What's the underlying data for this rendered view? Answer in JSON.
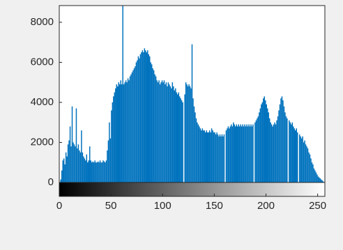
{
  "chart_data": {
    "type": "bar",
    "color": "#0072bd",
    "xlim": [
      0,
      257
    ],
    "ylim": [
      0,
      8835
    ],
    "xticks": [
      0,
      50,
      100,
      150,
      200,
      250
    ],
    "yticks": [
      0,
      2000,
      4000,
      6000,
      8000
    ],
    "x": [
      0,
      1,
      2,
      3,
      4,
      5,
      6,
      7,
      8,
      9,
      10,
      11,
      12,
      13,
      14,
      15,
      16,
      17,
      18,
      19,
      20,
      21,
      22,
      23,
      24,
      25,
      26,
      27,
      28,
      29,
      30,
      31,
      32,
      33,
      34,
      35,
      36,
      37,
      38,
      39,
      40,
      41,
      42,
      43,
      44,
      45,
      46,
      47,
      48,
      49,
      50,
      51,
      52,
      53,
      54,
      55,
      56,
      57,
      58,
      59,
      60,
      61,
      62,
      63,
      64,
      65,
      66,
      67,
      68,
      69,
      70,
      71,
      72,
      73,
      74,
      75,
      76,
      77,
      78,
      79,
      80,
      81,
      82,
      83,
      84,
      85,
      86,
      87,
      88,
      89,
      90,
      91,
      92,
      93,
      94,
      95,
      96,
      97,
      98,
      99,
      100,
      101,
      102,
      103,
      104,
      105,
      106,
      107,
      108,
      109,
      110,
      111,
      112,
      113,
      114,
      115,
      116,
      117,
      118,
      119,
      120,
      121,
      122,
      123,
      124,
      125,
      126,
      127,
      128,
      129,
      130,
      131,
      132,
      133,
      134,
      135,
      136,
      137,
      138,
      139,
      140,
      141,
      142,
      143,
      144,
      145,
      146,
      147,
      148,
      149,
      150,
      151,
      152,
      153,
      154,
      155,
      156,
      157,
      158,
      159,
      160,
      161,
      162,
      163,
      164,
      165,
      166,
      167,
      168,
      169,
      170,
      171,
      172,
      173,
      174,
      175,
      176,
      177,
      178,
      179,
      180,
      181,
      182,
      183,
      184,
      185,
      186,
      187,
      188,
      189,
      190,
      191,
      192,
      193,
      194,
      195,
      196,
      197,
      198,
      199,
      200,
      201,
      202,
      203,
      204,
      205,
      206,
      207,
      208,
      209,
      210,
      211,
      212,
      213,
      214,
      215,
      216,
      217,
      218,
      219,
      220,
      221,
      222,
      223,
      224,
      225,
      226,
      227,
      228,
      229,
      230,
      231,
      232,
      233,
      234,
      235,
      236,
      237,
      238,
      239,
      240,
      241,
      242,
      243,
      244,
      245,
      246,
      247,
      248,
      249,
      250,
      251,
      252,
      253,
      254,
      255
    ],
    "values": [
      0,
      150,
      600,
      1100,
      1200,
      900,
      1500,
      1300,
      1900,
      2100,
      2800,
      1800,
      3800,
      2000,
      1900,
      1800,
      3700,
      1700,
      1900,
      1600,
      1500,
      2600,
      1500,
      1300,
      1200,
      1100,
      1400,
      1000,
      1100,
      1800,
      1100,
      1000,
      1050,
      1000,
      1100,
      1000,
      1000,
      1050,
      1000,
      1100,
      1000,
      1000,
      1100,
      1050,
      1000,
      1100,
      1600,
      2100,
      3000,
      2200,
      3600,
      4000,
      4300,
      4500,
      4700,
      4900,
      4800,
      5000,
      4900,
      5100,
      4900,
      8835,
      4900,
      5000,
      5100,
      5000,
      5200,
      5100,
      5300,
      5400,
      5500,
      5600,
      5700,
      5800,
      6000,
      6100,
      6300,
      6200,
      6400,
      6500,
      6600,
      6500,
      6700,
      6600,
      6500,
      6600,
      6400,
      6300,
      6000,
      5900,
      5700,
      5600,
      5400,
      5300,
      5100,
      5000,
      5100,
      4900,
      5000,
      5100,
      5000,
      5100,
      4900,
      5000,
      4800,
      5000,
      4900,
      4800,
      4700,
      5000,
      4800,
      4600,
      4700,
      4500,
      4400,
      4500,
      4300,
      4200,
      4100,
      4000,
      0,
      4400,
      5000,
      4900,
      4800,
      4900,
      4800,
      4700,
      6900,
      4200,
      3800,
      3500,
      3200,
      3000,
      2900,
      2800,
      2700,
      2600,
      2700,
      2600,
      2600,
      2500,
      2600,
      2500,
      2500,
      2600,
      2500,
      2700,
      2600,
      2500,
      2500,
      2400,
      2500,
      2400,
      2300,
      2400,
      2300,
      2400,
      2300,
      2400,
      0,
      2600,
      2700,
      2800,
      2700,
      2800,
      2900,
      2800,
      3000,
      2900,
      2800,
      2900,
      2800,
      2900,
      2800,
      2900,
      2800,
      2900,
      2800,
      2900,
      2800,
      2900,
      2800,
      2900,
      2800,
      2900,
      2800,
      2900,
      0,
      3000,
      3100,
      3200,
      3300,
      3500,
      3700,
      3900,
      4000,
      4200,
      4300,
      4100,
      3900,
      3700,
      3500,
      3200,
      3000,
      2900,
      2800,
      2900,
      3000,
      2900,
      3100,
      3300,
      3600,
      3900,
      4200,
      4300,
      4100,
      3800,
      3500,
      3300,
      3200,
      0,
      3100,
      3000,
      2900,
      3000,
      2800,
      2700,
      2600,
      2700,
      2500,
      0,
      2400,
      2300,
      2200,
      2300,
      2000,
      2100,
      1900,
      1800,
      1700,
      1500,
      1400,
      1200,
      1000,
      900,
      700,
      600,
      500,
      400,
      300,
      250,
      200,
      150,
      100,
      50
    ]
  }
}
